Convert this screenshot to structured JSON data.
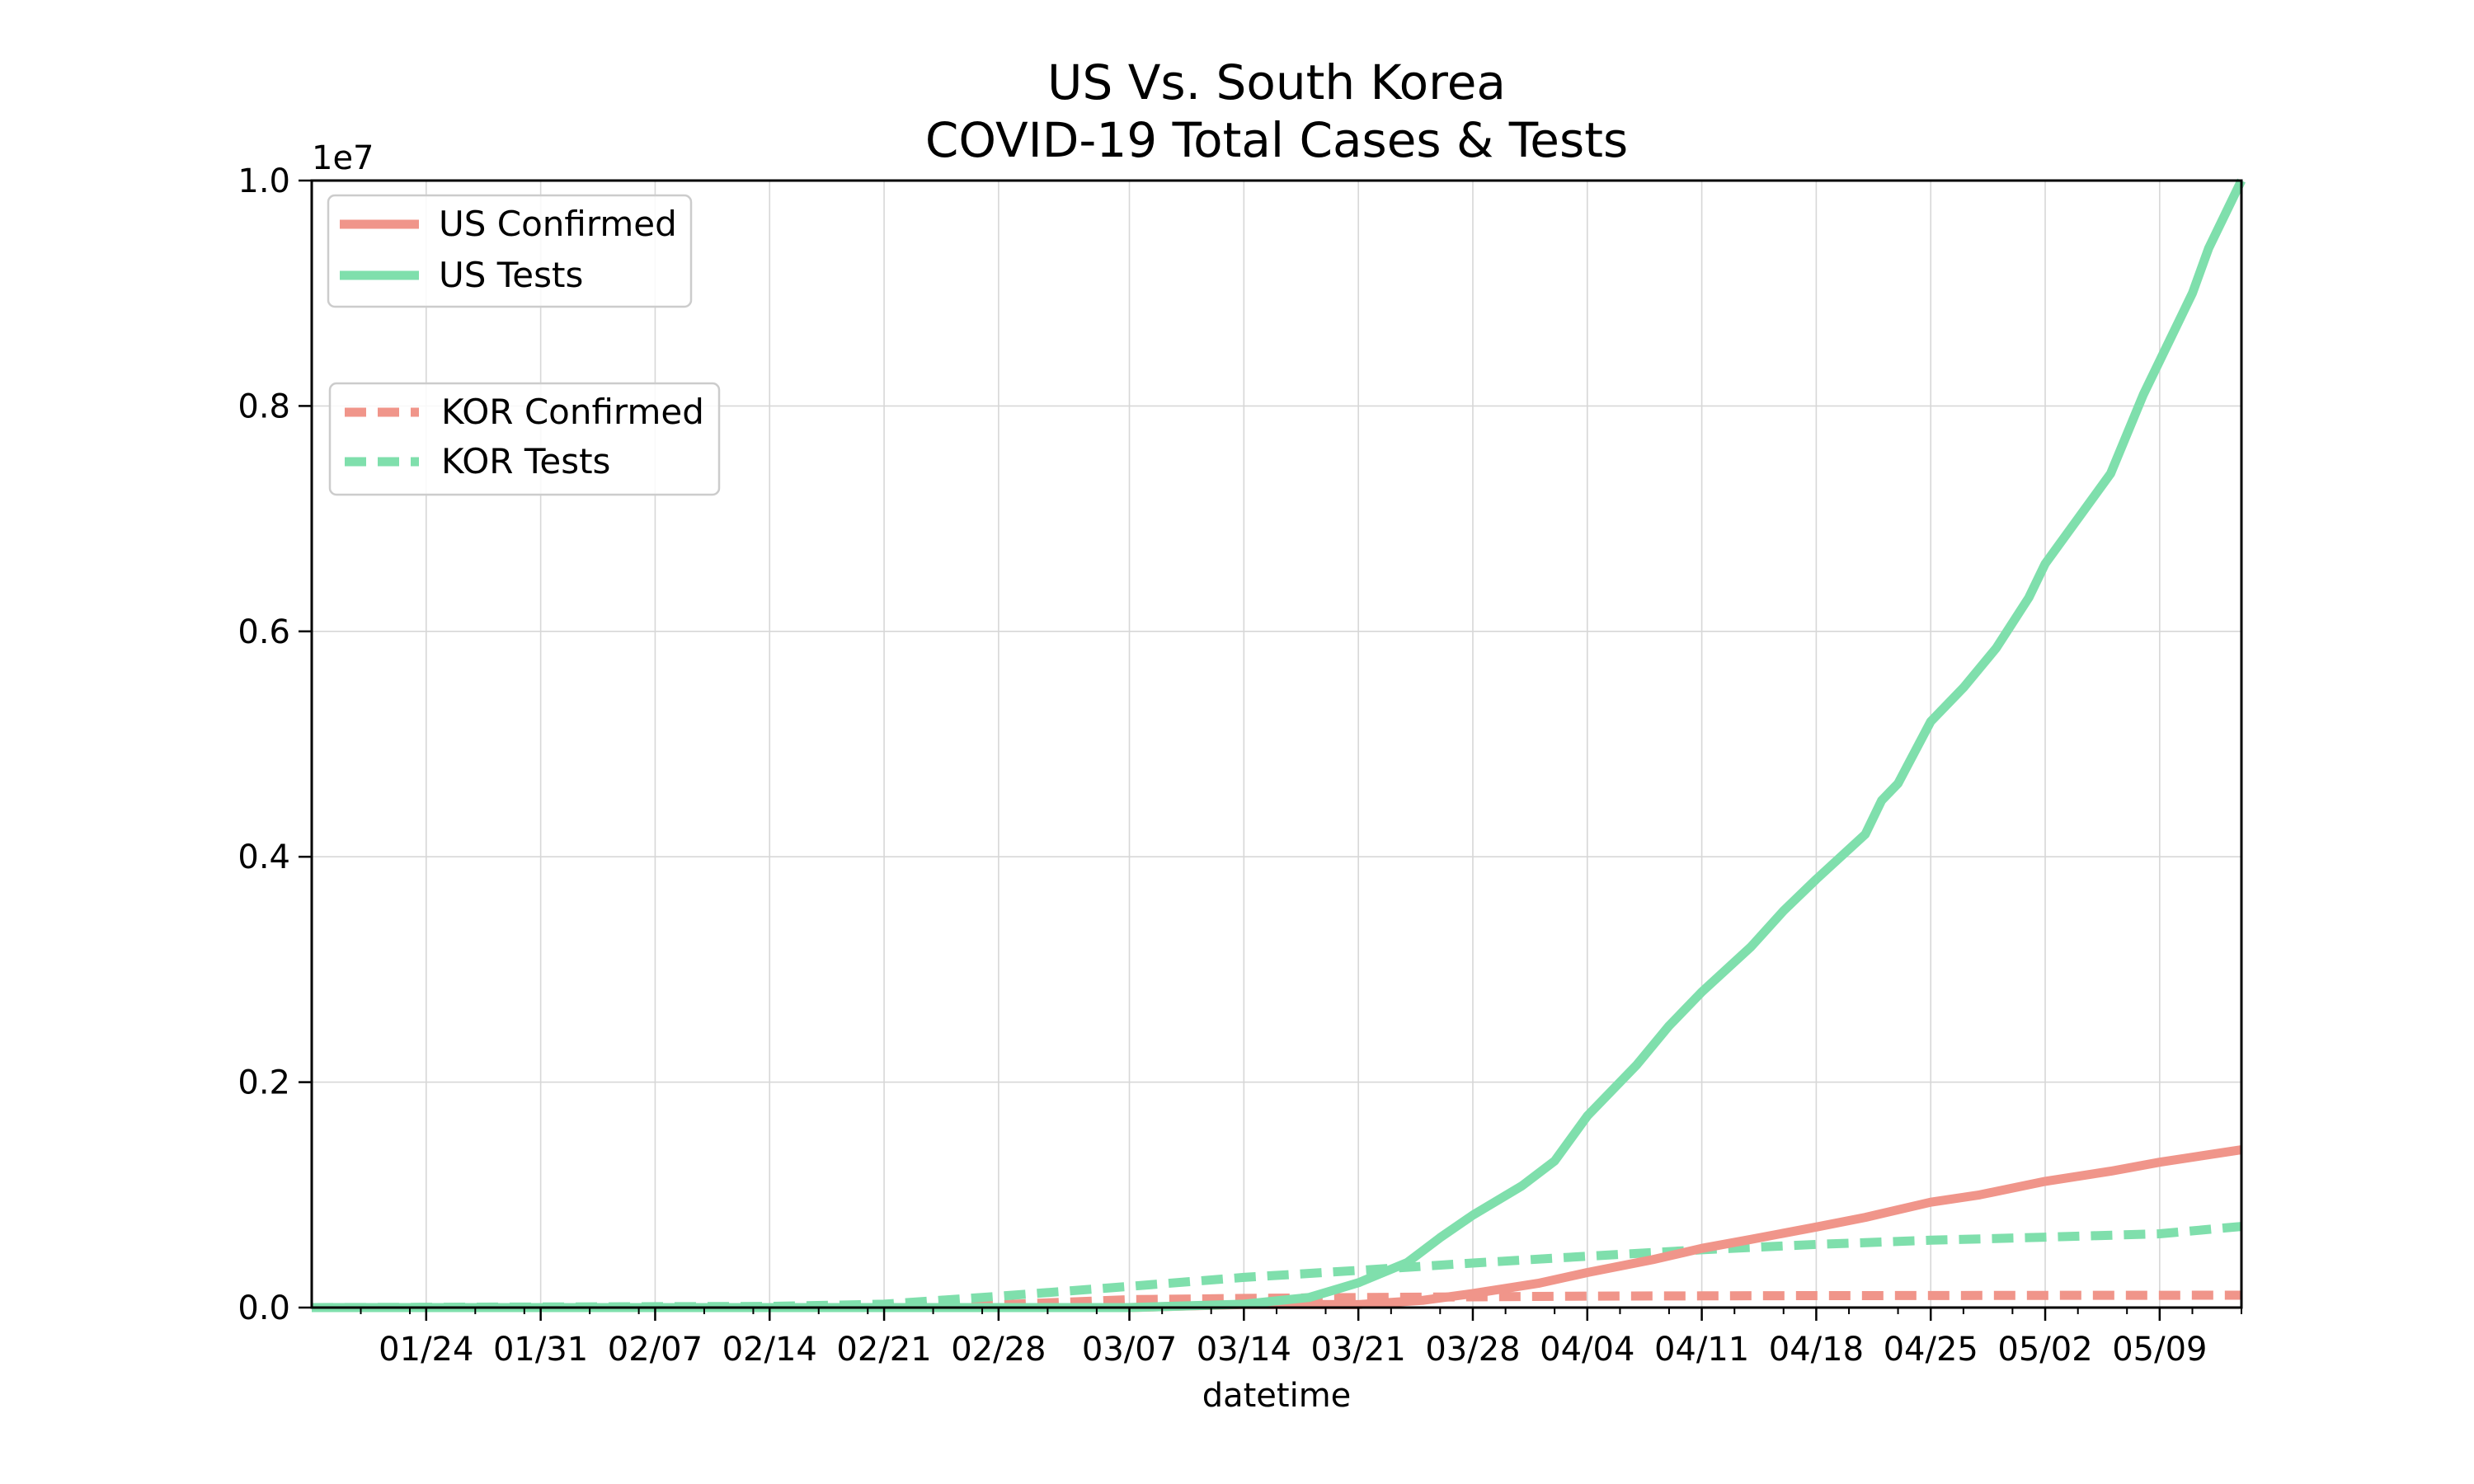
{
  "chart_data": {
    "type": "line",
    "title": [
      "US Vs. South Korea",
      "COVID-19 Total Cases & Tests"
    ],
    "xlabel": "datetime",
    "ylabel": "",
    "y_scale_note": "1e7",
    "xlim": [
      "2020-01-17",
      "2020-05-14"
    ],
    "ylim": [
      0,
      1.0
    ],
    "x_ticks": [
      "2020-01-24",
      "2020-01-31",
      "2020-02-07",
      "2020-02-14",
      "2020-02-21",
      "2020-02-28",
      "2020-03-07",
      "2020-03-14",
      "2020-03-21",
      "2020-03-28",
      "2020-04-04",
      "2020-04-11",
      "2020-04-18",
      "2020-04-25",
      "2020-05-02",
      "2020-05-09"
    ],
    "x_tick_labels": [
      "01/24",
      "01/31",
      "02/07",
      "02/14",
      "02/21",
      "02/28",
      "03/07",
      "03/14",
      "03/21",
      "03/28",
      "04/04",
      "04/11",
      "04/18",
      "04/25",
      "05/02",
      "05/09"
    ],
    "y_ticks": [
      0.0,
      0.2,
      0.4,
      0.6,
      0.8,
      1.0
    ],
    "y_tick_labels": [
      "0.0",
      "0.2",
      "0.4",
      "0.6",
      "0.8",
      "1.0"
    ],
    "grid": true,
    "legends": [
      {
        "placement": "upper-left",
        "entries": [
          "US Confirmed",
          "US Tests"
        ]
      },
      {
        "placement": "upper-left (below first)",
        "entries": [
          "KOR Confirmed",
          "KOR Tests"
        ]
      }
    ],
    "series": [
      {
        "name": "US Confirmed",
        "color": "#f0958a",
        "style": "solid",
        "points": [
          [
            "2020-01-17",
            0.0
          ],
          [
            "2020-03-07",
            0.0
          ],
          [
            "2020-03-14",
            0.0027
          ],
          [
            "2020-03-21",
            0.0026
          ],
          [
            "2020-03-25",
            0.0065
          ],
          [
            "2020-03-28",
            0.0124
          ],
          [
            "2020-04-01",
            0.0215
          ],
          [
            "2020-04-04",
            0.0311
          ],
          [
            "2020-04-08",
            0.0425
          ],
          [
            "2020-04-11",
            0.0525
          ],
          [
            "2020-04-14",
            0.0605
          ],
          [
            "2020-04-18",
            0.0715
          ],
          [
            "2020-04-21",
            0.08
          ],
          [
            "2020-04-25",
            0.0935
          ],
          [
            "2020-04-28",
            0.1
          ],
          [
            "2020-05-02",
            0.112
          ],
          [
            "2020-05-06",
            0.121
          ],
          [
            "2020-05-09",
            0.129
          ],
          [
            "2020-05-14",
            0.14
          ]
        ]
      },
      {
        "name": "US Tests",
        "color": "#7fdfac",
        "style": "solid",
        "points": [
          [
            "2020-01-17",
            0.0
          ],
          [
            "2020-02-21",
            0.0
          ],
          [
            "2020-03-07",
            0.0
          ],
          [
            "2020-03-14",
            0.003
          ],
          [
            "2020-03-18",
            0.009
          ],
          [
            "2020-03-21",
            0.022
          ],
          [
            "2020-03-24",
            0.04
          ],
          [
            "2020-03-26",
            0.062
          ],
          [
            "2020-03-28",
            0.082
          ],
          [
            "2020-03-31",
            0.108
          ],
          [
            "2020-04-02",
            0.13
          ],
          [
            "2020-04-04",
            0.17
          ],
          [
            "2020-04-07",
            0.215
          ],
          [
            "2020-04-09",
            0.25
          ],
          [
            "2020-04-11",
            0.28
          ],
          [
            "2020-04-14",
            0.32
          ],
          [
            "2020-04-16",
            0.352
          ],
          [
            "2020-04-18",
            0.38
          ],
          [
            "2020-04-21",
            0.42
          ],
          [
            "2020-04-22",
            0.45
          ],
          [
            "2020-04-23",
            0.465
          ],
          [
            "2020-04-25",
            0.52
          ],
          [
            "2020-04-27",
            0.55
          ],
          [
            "2020-04-29",
            0.585
          ],
          [
            "2020-05-01",
            0.63
          ],
          [
            "2020-05-02",
            0.66
          ],
          [
            "2020-05-04",
            0.7
          ],
          [
            "2020-05-06",
            0.74
          ],
          [
            "2020-05-08",
            0.81
          ],
          [
            "2020-05-10",
            0.87
          ],
          [
            "2020-05-11",
            0.9
          ],
          [
            "2020-05-12",
            0.94
          ],
          [
            "2020-05-14",
            1.0
          ]
        ]
      },
      {
        "name": "KOR Confirmed",
        "color": "#f0958a",
        "style": "dashed",
        "points": [
          [
            "2020-01-17",
            0.0
          ],
          [
            "2020-02-21",
            0.0002
          ],
          [
            "2020-02-28",
            0.0025
          ],
          [
            "2020-03-07",
            0.007
          ],
          [
            "2020-03-14",
            0.0081
          ],
          [
            "2020-03-21",
            0.0089
          ],
          [
            "2020-03-28",
            0.0095
          ],
          [
            "2020-04-04",
            0.0102
          ],
          [
            "2020-04-11",
            0.0104
          ],
          [
            "2020-04-18",
            0.0106
          ],
          [
            "2020-04-25",
            0.0107
          ],
          [
            "2020-05-02",
            0.0108
          ],
          [
            "2020-05-09",
            0.0109
          ],
          [
            "2020-05-14",
            0.011
          ]
        ]
      },
      {
        "name": "KOR Tests",
        "color": "#7fdfac",
        "style": "dashed",
        "points": [
          [
            "2020-01-17",
            0.0
          ],
          [
            "2020-02-14",
            0.001
          ],
          [
            "2020-02-21",
            0.003
          ],
          [
            "2020-02-28",
            0.01
          ],
          [
            "2020-03-07",
            0.0188
          ],
          [
            "2020-03-14",
            0.0268
          ],
          [
            "2020-03-21",
            0.033
          ],
          [
            "2020-03-28",
            0.0395
          ],
          [
            "2020-04-04",
            0.0456
          ],
          [
            "2020-04-11",
            0.0513
          ],
          [
            "2020-04-18",
            0.056
          ],
          [
            "2020-04-25",
            0.0598
          ],
          [
            "2020-05-02",
            0.0625
          ],
          [
            "2020-05-09",
            0.0655
          ],
          [
            "2020-05-14",
            0.072
          ]
        ]
      }
    ]
  }
}
